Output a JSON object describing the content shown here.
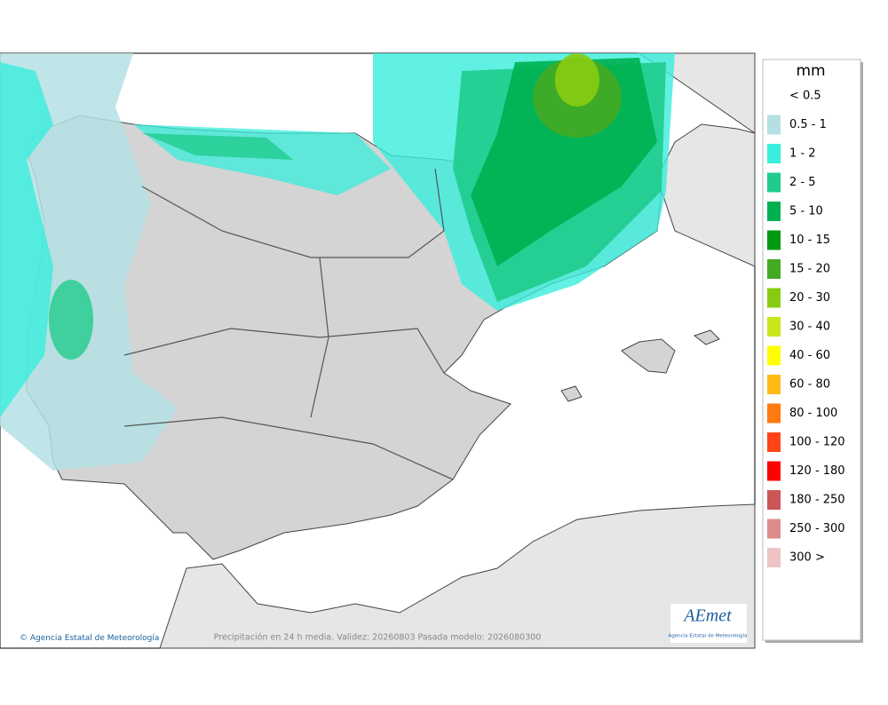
{
  "legend": {
    "title": "mm",
    "items": [
      {
        "label": "< 0.5",
        "color": "#ffffff"
      },
      {
        "label": "0.5 - 1",
        "color": "#b4e0e4"
      },
      {
        "label": "1 - 2",
        "color": "#38eedc"
      },
      {
        "label": "2 - 5",
        "color": "#20cc8c"
      },
      {
        "label": "5 - 10",
        "color": "#00b050"
      },
      {
        "label": "10 - 15",
        "color": "#009a10"
      },
      {
        "label": "15 - 20",
        "color": "#44aa22"
      },
      {
        "label": "20 - 30",
        "color": "#88cc11"
      },
      {
        "label": "30 - 40",
        "color": "#c8e61a"
      },
      {
        "label": "40 - 60",
        "color": "#ffff00"
      },
      {
        "label": "60 - 80",
        "color": "#ffbb18"
      },
      {
        "label": "80 - 100",
        "color": "#ff7a10"
      },
      {
        "label": "100 - 120",
        "color": "#ff4418"
      },
      {
        "label": "120 - 180",
        "color": "#ff0000"
      },
      {
        "label": "180 - 250",
        "color": "#cc5555"
      },
      {
        "label": "250 - 300",
        "color": "#dd8c8c"
      },
      {
        "label": "300 >",
        "color": "#eec4c4"
      }
    ]
  },
  "footer": {
    "agency": "Agencia Estatal de Meteorología",
    "caption": "Precipitación en 24 h media. Validez: 20260803 Pasada modelo: 2026080300"
  },
  "logo": {
    "name": "AEmet",
    "subtitle": "Agencia Estatal de Meteorología"
  }
}
